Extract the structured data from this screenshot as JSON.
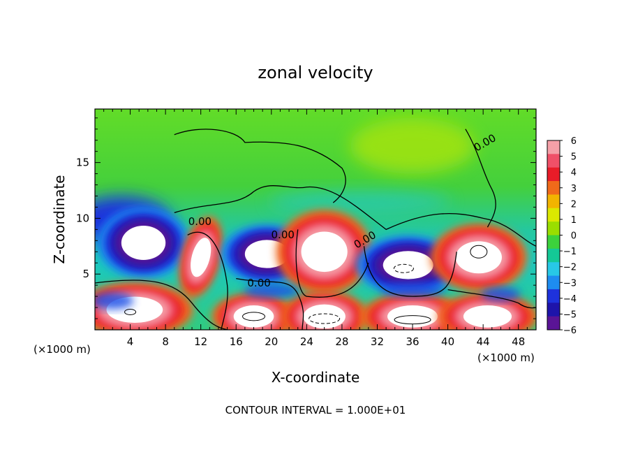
{
  "chart_data": {
    "type": "heatmap",
    "title": "zonal velocity",
    "xlabel": "X-coordinate",
    "ylabel": "Z-coordinate",
    "x_unit_left": "(×1000 m)",
    "x_unit_right": "(×1000 m)",
    "footer": "CONTOUR INTERVAL = 1.000E+01",
    "xlim": [
      0,
      50
    ],
    "ylim": [
      0,
      19.8
    ],
    "x_ticks": [
      "4",
      "8",
      "12",
      "16",
      "20",
      "24",
      "28",
      "32",
      "36",
      "40",
      "44",
      "48"
    ],
    "y_ticks": [
      "5",
      "10",
      "15"
    ],
    "contour_labels": [
      "0.00",
      "0.00",
      "0.00",
      "0.00",
      "0.00"
    ],
    "colorbar": {
      "range": [
        -6,
        6
      ],
      "ticks": [
        "6",
        "5",
        "4",
        "3",
        "2",
        "1",
        "0",
        "−1",
        "−2",
        "−3",
        "−4",
        "−5",
        "−6"
      ],
      "colors": [
        "#f5a0a8",
        "#f05068",
        "#e81c28",
        "#f06a1a",
        "#f2b400",
        "#dce800",
        "#9ade00",
        "#3cd23c",
        "#14c896",
        "#28c8e6",
        "#1e8cf0",
        "#1e32dc",
        "#1e14aa",
        "#5a1496"
      ]
    },
    "features": [
      {
        "x": 5.5,
        "z": 7.8,
        "kind": "jet",
        "sign": "negative"
      },
      {
        "x": 12,
        "z": 6.5,
        "kind": "jet",
        "sign": "positive"
      },
      {
        "x": 19.5,
        "z": 6.8,
        "kind": "jet",
        "sign": "negative"
      },
      {
        "x": 26,
        "z": 7.0,
        "kind": "jet",
        "sign": "positive"
      },
      {
        "x": 35.5,
        "z": 5.8,
        "kind": "jet",
        "sign": "negative"
      },
      {
        "x": 43.5,
        "z": 6.5,
        "kind": "jet",
        "sign": "positive"
      },
      {
        "x": 4.5,
        "z": 1.8,
        "kind": "jet",
        "sign": "positive"
      },
      {
        "x": 18,
        "z": 1.2,
        "kind": "jet",
        "sign": "positive"
      },
      {
        "x": 26,
        "z": 1.2,
        "kind": "jet",
        "sign": "positive"
      },
      {
        "x": 36,
        "z": 1.2,
        "kind": "jet",
        "sign": "positive"
      },
      {
        "x": 44.5,
        "z": 1.2,
        "kind": "jet",
        "sign": "positive"
      },
      {
        "x": 3,
        "z": 9.5,
        "kind": "band",
        "sign": "negative"
      }
    ]
  }
}
